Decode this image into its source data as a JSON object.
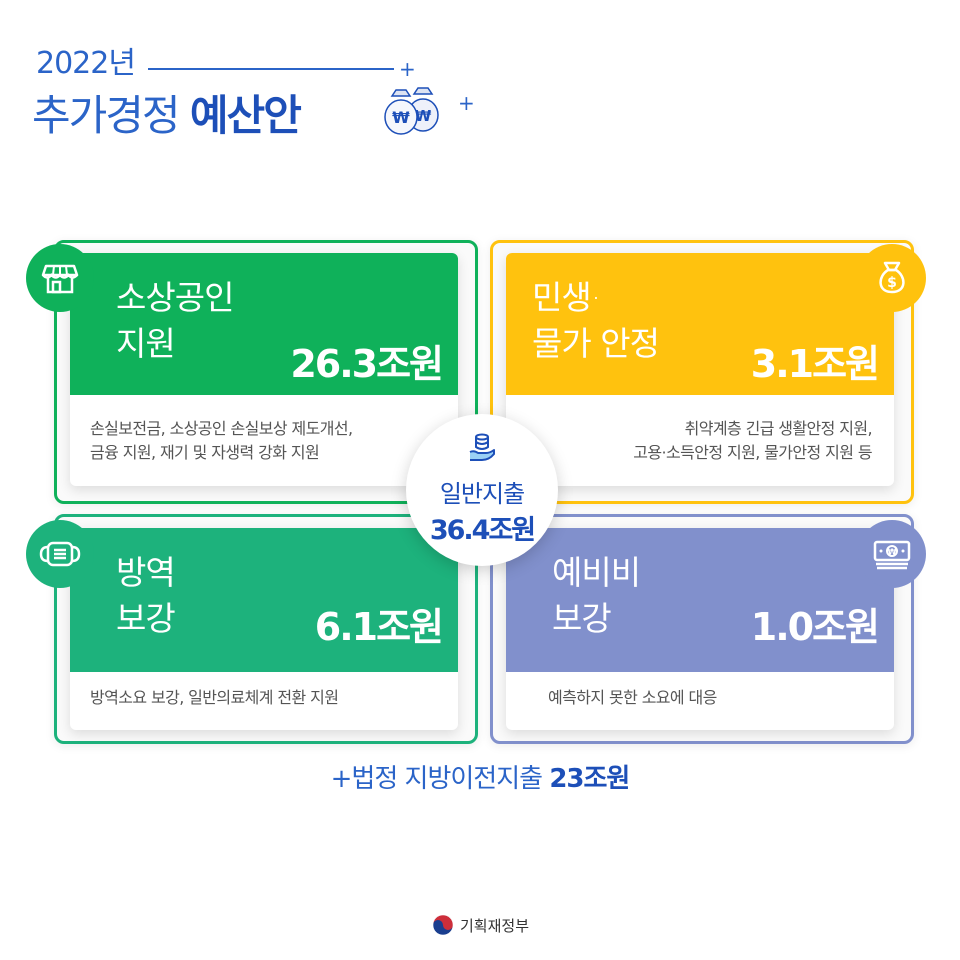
{
  "title": {
    "year": "2022년",
    "title_plain": "추가경정 ",
    "title_bold": "예산안"
  },
  "cards": [
    {
      "title": "소상공인\n지원",
      "amount": "26.3조원",
      "description": "손실보전금, 소상공인 손실보상 제도개선,\n금융 지원, 재기 및 자생력 강화 지원",
      "color": "#0fb15a",
      "icon": "store-icon"
    },
    {
      "title": "민생·\n물가 안정",
      "amount": "3.1조원",
      "description": "취약계층 긴급 생활안정 지원,\n고용·소득안정 지원, 물가안정 지원 등",
      "color": "#ffc20e",
      "icon": "money-bag-icon"
    },
    {
      "title": "방역\n보강",
      "amount": "6.1조원",
      "description": "방역소요 보강, 일반의료체계 전환 지원",
      "color": "#1db27c",
      "icon": "mask-icon"
    },
    {
      "title": "예비비\n보강",
      "amount": "1.0조원",
      "description": "예측하지 못한 소요에 대응",
      "color": "#8190cc",
      "icon": "banknote-icon"
    }
  ],
  "center": {
    "label": "일반지출",
    "value": "36.4조원",
    "icon": "coins-hand-icon"
  },
  "extra": {
    "label": "+법정 지방이전지출 ",
    "value": "23조원"
  },
  "ministry": {
    "name": "기획재정부"
  },
  "colors": {
    "primary_blue": "#1d4fb8",
    "green": "#0fb15a",
    "yellow": "#ffc20e",
    "teal": "#1db27c",
    "periwinkle": "#8190cc"
  }
}
